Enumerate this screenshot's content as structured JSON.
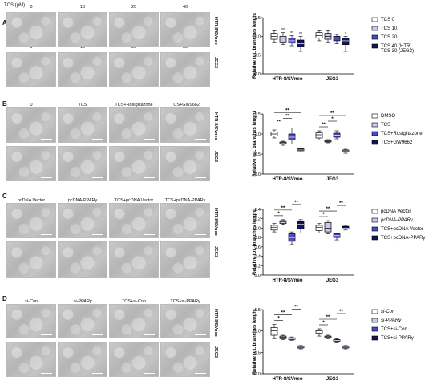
{
  "panels": [
    {
      "id": "A",
      "row_labels": [
        "HTR-8/SVneo",
        "JEG3"
      ],
      "col_labels_row1": [
        "0",
        "10",
        "20",
        "40"
      ],
      "col_labels_row2": [
        "0",
        "10",
        "20",
        "30"
      ],
      "header": "TCS (µM)"
    },
    {
      "id": "B",
      "row_labels": [
        "HTR-8/SVneo",
        "JEG3"
      ],
      "col_labels": [
        "0",
        "TCS",
        "TCS+Rosiglitazone",
        "TCS+GW9662"
      ]
    },
    {
      "id": "C",
      "row_labels": [
        "HTR-8/SVneo",
        "JEG3"
      ],
      "col_labels": [
        "pcDNA Vector",
        "pcDNA-PPARγ",
        "TCS+pcDNA Vector",
        "TCS+pcDNA-PPARγ"
      ]
    },
    {
      "id": "D",
      "row_labels": [
        "HTR-8/SVneo",
        "JEG3"
      ],
      "col_labels": [
        "si-Con",
        "si-PPARγ",
        "TCS+si-Con",
        "TCS+si-PPARγ"
      ]
    }
  ],
  "chart_data": [
    {
      "type": "box",
      "panel": "A",
      "ylabel": "Relative tot. branches lenght",
      "ylim": [
        0,
        1.5
      ],
      "yticks": [
        "0.0",
        "0.5",
        "1.0",
        "1.5"
      ],
      "categories": [
        "HTR-8/SVneo",
        "JEG3"
      ],
      "legend": [
        "TCS 0",
        "TCS 10",
        "TCS 20",
        "TCS 40 (HTR)\nTCS 30 (JEG3)"
      ],
      "colors": [
        "#ffffff",
        "#c9c9ef",
        "#4a4ac8",
        "#15155a"
      ],
      "boxes": [
        [
          [
            0.85,
            0.92,
            1.0,
            1.08,
            1.15
          ],
          [
            0.78,
            0.85,
            0.95,
            1.0,
            1.1
          ],
          [
            0.75,
            0.82,
            0.88,
            0.95,
            1.02
          ],
          [
            0.6,
            0.72,
            0.8,
            0.9,
            1.0
          ]
        ],
        [
          [
            0.88,
            0.95,
            1.02,
            1.1,
            1.15
          ],
          [
            0.85,
            0.92,
            1.0,
            1.08,
            1.15
          ],
          [
            0.8,
            0.88,
            0.95,
            1.0,
            1.05
          ],
          [
            0.6,
            0.78,
            0.88,
            0.95,
            1.0
          ]
        ]
      ],
      "stars": [
        [
          "",
          "**",
          "**",
          "**"
        ],
        [
          "",
          "",
          "",
          "*"
        ]
      ]
    },
    {
      "type": "box",
      "panel": "B",
      "ylabel": "Relative tot. branches lenght",
      "ylim": [
        0,
        1.5
      ],
      "yticks": [
        "0.0",
        "0.5",
        "1.0",
        "1.5"
      ],
      "categories": [
        "HTR-8/SVneo",
        "JEG3"
      ],
      "legend": [
        "DMSO",
        "TCS",
        "TCS+Rosiglitazone",
        "TCS+GW9662"
      ],
      "colors": [
        "#ffffff",
        "#c9c9ef",
        "#4a4ac8",
        "#15155a"
      ],
      "boxes": [
        [
          [
            0.9,
            0.95,
            1.0,
            1.05,
            1.1
          ],
          [
            0.72,
            0.75,
            0.78,
            0.8,
            0.82
          ],
          [
            0.75,
            0.85,
            0.92,
            1.0,
            1.15
          ],
          [
            0.55,
            0.58,
            0.6,
            0.63,
            0.65
          ]
        ],
        [
          [
            0.85,
            0.9,
            0.98,
            1.03,
            1.08
          ],
          [
            0.78,
            0.8,
            0.82,
            0.84,
            0.86
          ],
          [
            0.88,
            0.92,
            0.97,
            1.02,
            1.08
          ],
          [
            0.52,
            0.55,
            0.58,
            0.6,
            0.62
          ]
        ]
      ],
      "sig": [
        [
          0,
          1,
          "**"
        ],
        [
          1,
          2,
          "**"
        ],
        [
          0,
          3,
          "**"
        ]
      ],
      "sig2": [
        [
          0,
          1,
          "**"
        ],
        [
          1,
          2,
          "*"
        ],
        [
          0,
          3,
          "**"
        ]
      ]
    },
    {
      "type": "box",
      "panel": "C",
      "ylabel": "Relative tot. branches lenght",
      "ylim": [
        0,
        1.4
      ],
      "yticks": [
        "0.0",
        "0.2",
        "0.4",
        "0.6",
        "0.8",
        "1.0",
        "1.2",
        "1.4"
      ],
      "categories": [
        "HTR-8/SVneo",
        "JEG3"
      ],
      "legend": [
        "pcDNA Vector",
        "pcDNA-PPARγ",
        "TCS+pcDNA Vector",
        "TCS+pcDNA-PPARγ"
      ],
      "colors": [
        "#ffffff",
        "#c9c9ef",
        "#4a4ac8",
        "#15155a"
      ],
      "boxes": [
        [
          [
            0.92,
            0.96,
            1.02,
            1.06,
            1.1
          ],
          [
            1.08,
            1.1,
            1.14,
            1.16,
            1.18
          ],
          [
            0.65,
            0.72,
            0.8,
            0.88,
            0.92
          ],
          [
            0.9,
            0.98,
            1.08,
            1.14,
            1.18
          ]
        ],
        [
          [
            0.9,
            0.95,
            1.02,
            1.06,
            1.1
          ],
          [
            0.88,
            0.92,
            1.0,
            1.12,
            1.16
          ],
          [
            0.75,
            0.8,
            0.84,
            0.88,
            0.9
          ],
          [
            0.96,
            0.98,
            1.0,
            1.04,
            1.06
          ]
        ]
      ],
      "sig": [
        [
          0,
          1,
          "*"
        ],
        [
          0,
          2,
          "**"
        ],
        [
          2,
          3,
          "**"
        ]
      ],
      "sig2": [
        [
          0,
          1,
          "*"
        ],
        [
          0,
          2,
          "**"
        ],
        [
          2,
          3,
          "**"
        ]
      ]
    },
    {
      "type": "box",
      "panel": "D",
      "ylabel": "Relative tot. branches lenght",
      "ylim": [
        0,
        1.5
      ],
      "yticks": [
        "0.0",
        "0.5",
        "1.0",
        "1.5"
      ],
      "categories": [
        "HTR-8/SVneo",
        "JEG3"
      ],
      "legend": [
        "si-Con",
        "si-PPARγ",
        "TCS+si-Con",
        "TCS+si-PPARγ"
      ],
      "colors": [
        "#ffffff",
        "#c9c9ef",
        "#4a4ac8",
        "#15155a"
      ],
      "boxes": [
        [
          [
            0.82,
            0.9,
            1.0,
            1.08,
            1.15
          ],
          [
            0.8,
            0.82,
            0.85,
            0.88,
            0.9
          ],
          [
            0.78,
            0.8,
            0.82,
            0.84,
            0.86
          ],
          [
            0.58,
            0.6,
            0.62,
            0.64,
            0.66
          ]
        ],
        [
          [
            0.88,
            0.95,
            1.0,
            1.02,
            1.05
          ],
          [
            0.82,
            0.84,
            0.86,
            0.88,
            0.9
          ],
          [
            0.72,
            0.75,
            0.78,
            0.8,
            0.82
          ],
          [
            0.58,
            0.6,
            0.62,
            0.64,
            0.66
          ]
        ]
      ],
      "sig": [
        [
          0,
          1,
          "*"
        ],
        [
          0,
          2,
          "**"
        ],
        [
          2,
          3,
          "**"
        ]
      ],
      "sig2": [
        [
          0,
          1,
          "*"
        ],
        [
          0,
          2,
          "**"
        ],
        [
          2,
          3,
          "**"
        ]
      ]
    }
  ]
}
